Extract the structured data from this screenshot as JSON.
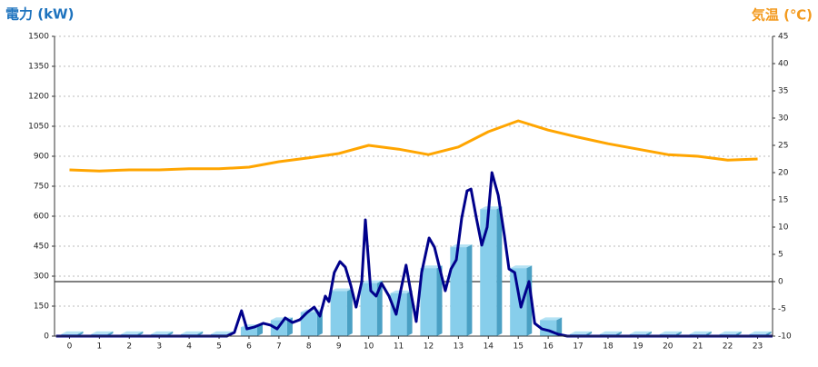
{
  "chart_data": {
    "type": "combo",
    "y_label": "電力 (kW)",
    "y2_label": "気温 (℃)",
    "xlim": [
      -0.5,
      23.5
    ],
    "xticks": [
      0,
      1,
      2,
      3,
      4,
      5,
      6,
      7,
      8,
      9,
      10,
      11,
      12,
      13,
      14,
      15,
      16,
      17,
      18,
      19,
      20,
      21,
      22,
      23
    ],
    "ylim": [
      0,
      1500
    ],
    "yticks": [
      0,
      150,
      300,
      450,
      600,
      750,
      900,
      1050,
      1200,
      1350,
      1500
    ],
    "y2lim": [
      -10,
      45
    ],
    "y2ticks": [
      -10,
      -5,
      0,
      5,
      10,
      15,
      20,
      25,
      30,
      35,
      40,
      45
    ],
    "grid": true,
    "y2_zero_line": true,
    "series": [
      {
        "type": "bar",
        "color": "#87ceeb",
        "x": [
          0,
          1,
          2,
          3,
          4,
          5,
          6,
          7,
          8,
          9,
          10,
          11,
          12,
          13,
          14,
          15,
          16,
          17,
          18,
          19,
          20,
          21,
          22,
          23
        ],
        "values": [
          10,
          10,
          10,
          10,
          10,
          10,
          45,
          80,
          120,
          225,
          265,
          215,
          340,
          445,
          635,
          340,
          80,
          10,
          10,
          10,
          10,
          10,
          10,
          10
        ]
      },
      {
        "type": "line",
        "color": "#00008b",
        "x": [
          -0.45,
          5.26,
          5.51,
          5.75,
          5.93,
          6.17,
          6.48,
          6.72,
          6.94,
          7.21,
          7.45,
          7.7,
          7.94,
          8.18,
          8.37,
          8.55,
          8.67,
          8.85,
          9.04,
          9.22,
          9.4,
          9.58,
          9.77,
          9.89,
          10.07,
          10.25,
          10.43,
          10.68,
          10.92,
          11.07,
          11.25,
          11.41,
          11.59,
          11.77,
          12.02,
          12.2,
          12.38,
          12.56,
          12.75,
          12.93,
          13.11,
          13.29,
          13.42,
          13.6,
          13.78,
          13.96,
          14.12,
          14.33,
          14.54,
          14.69,
          14.88,
          15.09,
          15.24,
          15.36,
          15.55,
          15.79,
          16.03,
          16.34,
          16.64,
          23.5
        ],
        "values": [
          0,
          0,
          18,
          127,
          36,
          45,
          64,
          55,
          36,
          91,
          68,
          82,
          118,
          145,
          100,
          200,
          173,
          318,
          373,
          345,
          255,
          145,
          273,
          582,
          227,
          200,
          264,
          200,
          109,
          227,
          355,
          218,
          73,
          318,
          491,
          445,
          336,
          227,
          336,
          382,
          591,
          727,
          736,
          591,
          455,
          545,
          818,
          705,
          500,
          336,
          318,
          145,
          218,
          273,
          64,
          36,
          27,
          9,
          0,
          0
        ]
      },
      {
        "type": "line",
        "axis": "y2",
        "color": "#ffa500",
        "x": [
          0,
          1,
          2,
          3,
          4,
          5,
          6,
          7,
          8,
          9,
          10,
          11,
          12,
          13,
          14,
          15,
          16,
          17,
          18,
          19,
          20,
          21,
          22,
          23
        ],
        "values": [
          20.5,
          20.3,
          20.5,
          20.5,
          20.7,
          20.7,
          21.0,
          22.0,
          22.7,
          23.5,
          25.0,
          24.3,
          23.3,
          24.7,
          27.5,
          29.5,
          27.8,
          26.5,
          25.3,
          24.3,
          23.3,
          23.0,
          22.3,
          22.5
        ]
      }
    ]
  }
}
